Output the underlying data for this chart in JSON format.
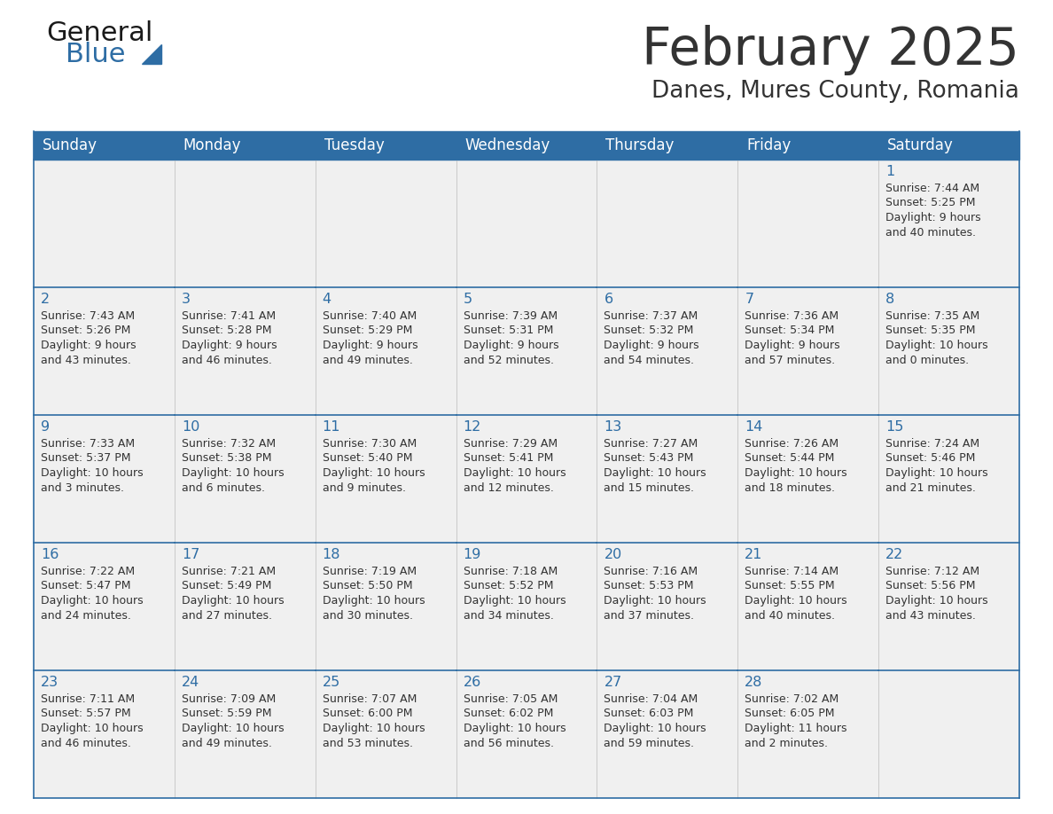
{
  "title": "February 2025",
  "subtitle": "Danes, Mures County, Romania",
  "header_bg": "#2E6DA4",
  "header_text_color": "#FFFFFF",
  "cell_bg": "#F0F0F0",
  "text_color": "#333333",
  "day_number_color": "#2E6DA4",
  "border_color": "#2E6DA4",
  "days_of_week": [
    "Sunday",
    "Monday",
    "Tuesday",
    "Wednesday",
    "Thursday",
    "Friday",
    "Saturday"
  ],
  "weeks": [
    [
      {
        "day": "",
        "info": ""
      },
      {
        "day": "",
        "info": ""
      },
      {
        "day": "",
        "info": ""
      },
      {
        "day": "",
        "info": ""
      },
      {
        "day": "",
        "info": ""
      },
      {
        "day": "",
        "info": ""
      },
      {
        "day": "1",
        "info": "Sunrise: 7:44 AM\nSunset: 5:25 PM\nDaylight: 9 hours\nand 40 minutes."
      }
    ],
    [
      {
        "day": "2",
        "info": "Sunrise: 7:43 AM\nSunset: 5:26 PM\nDaylight: 9 hours\nand 43 minutes."
      },
      {
        "day": "3",
        "info": "Sunrise: 7:41 AM\nSunset: 5:28 PM\nDaylight: 9 hours\nand 46 minutes."
      },
      {
        "day": "4",
        "info": "Sunrise: 7:40 AM\nSunset: 5:29 PM\nDaylight: 9 hours\nand 49 minutes."
      },
      {
        "day": "5",
        "info": "Sunrise: 7:39 AM\nSunset: 5:31 PM\nDaylight: 9 hours\nand 52 minutes."
      },
      {
        "day": "6",
        "info": "Sunrise: 7:37 AM\nSunset: 5:32 PM\nDaylight: 9 hours\nand 54 minutes."
      },
      {
        "day": "7",
        "info": "Sunrise: 7:36 AM\nSunset: 5:34 PM\nDaylight: 9 hours\nand 57 minutes."
      },
      {
        "day": "8",
        "info": "Sunrise: 7:35 AM\nSunset: 5:35 PM\nDaylight: 10 hours\nand 0 minutes."
      }
    ],
    [
      {
        "day": "9",
        "info": "Sunrise: 7:33 AM\nSunset: 5:37 PM\nDaylight: 10 hours\nand 3 minutes."
      },
      {
        "day": "10",
        "info": "Sunrise: 7:32 AM\nSunset: 5:38 PM\nDaylight: 10 hours\nand 6 minutes."
      },
      {
        "day": "11",
        "info": "Sunrise: 7:30 AM\nSunset: 5:40 PM\nDaylight: 10 hours\nand 9 minutes."
      },
      {
        "day": "12",
        "info": "Sunrise: 7:29 AM\nSunset: 5:41 PM\nDaylight: 10 hours\nand 12 minutes."
      },
      {
        "day": "13",
        "info": "Sunrise: 7:27 AM\nSunset: 5:43 PM\nDaylight: 10 hours\nand 15 minutes."
      },
      {
        "day": "14",
        "info": "Sunrise: 7:26 AM\nSunset: 5:44 PM\nDaylight: 10 hours\nand 18 minutes."
      },
      {
        "day": "15",
        "info": "Sunrise: 7:24 AM\nSunset: 5:46 PM\nDaylight: 10 hours\nand 21 minutes."
      }
    ],
    [
      {
        "day": "16",
        "info": "Sunrise: 7:22 AM\nSunset: 5:47 PM\nDaylight: 10 hours\nand 24 minutes."
      },
      {
        "day": "17",
        "info": "Sunrise: 7:21 AM\nSunset: 5:49 PM\nDaylight: 10 hours\nand 27 minutes."
      },
      {
        "day": "18",
        "info": "Sunrise: 7:19 AM\nSunset: 5:50 PM\nDaylight: 10 hours\nand 30 minutes."
      },
      {
        "day": "19",
        "info": "Sunrise: 7:18 AM\nSunset: 5:52 PM\nDaylight: 10 hours\nand 34 minutes."
      },
      {
        "day": "20",
        "info": "Sunrise: 7:16 AM\nSunset: 5:53 PM\nDaylight: 10 hours\nand 37 minutes."
      },
      {
        "day": "21",
        "info": "Sunrise: 7:14 AM\nSunset: 5:55 PM\nDaylight: 10 hours\nand 40 minutes."
      },
      {
        "day": "22",
        "info": "Sunrise: 7:12 AM\nSunset: 5:56 PM\nDaylight: 10 hours\nand 43 minutes."
      }
    ],
    [
      {
        "day": "23",
        "info": "Sunrise: 7:11 AM\nSunset: 5:57 PM\nDaylight: 10 hours\nand 46 minutes."
      },
      {
        "day": "24",
        "info": "Sunrise: 7:09 AM\nSunset: 5:59 PM\nDaylight: 10 hours\nand 49 minutes."
      },
      {
        "day": "25",
        "info": "Sunrise: 7:07 AM\nSunset: 6:00 PM\nDaylight: 10 hours\nand 53 minutes."
      },
      {
        "day": "26",
        "info": "Sunrise: 7:05 AM\nSunset: 6:02 PM\nDaylight: 10 hours\nand 56 minutes."
      },
      {
        "day": "27",
        "info": "Sunrise: 7:04 AM\nSunset: 6:03 PM\nDaylight: 10 hours\nand 59 minutes."
      },
      {
        "day": "28",
        "info": "Sunrise: 7:02 AM\nSunset: 6:05 PM\nDaylight: 11 hours\nand 2 minutes."
      },
      {
        "day": "",
        "info": ""
      }
    ]
  ],
  "logo_text1": "General",
  "logo_text2": "Blue",
  "logo_text1_color": "#1a1a1a",
  "logo_text2_color": "#2E6DA4",
  "logo_triangle_color": "#2E6DA4",
  "fig_width": 11.88,
  "fig_height": 9.18,
  "dpi": 100
}
